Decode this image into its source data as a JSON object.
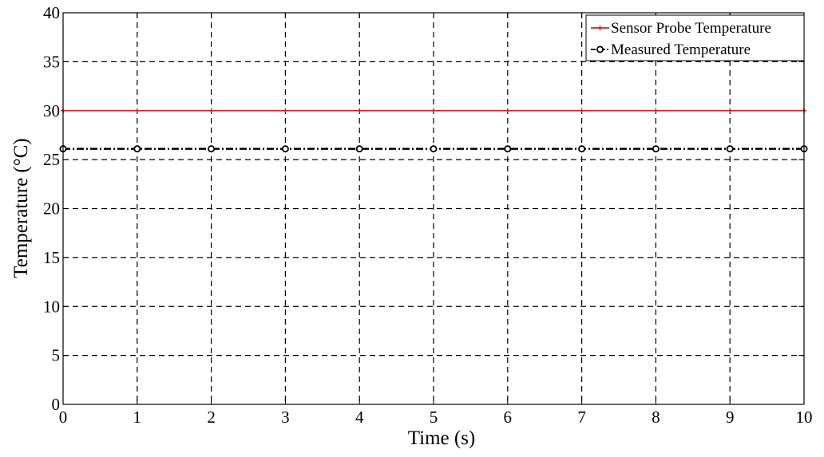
{
  "chart_data": {
    "type": "line",
    "title": "",
    "xlabel": "Time (s)",
    "ylabel": "Temperature (°C)",
    "xlim": [
      0,
      10
    ],
    "ylim": [
      0,
      40
    ],
    "xticks": [
      0,
      1,
      2,
      3,
      4,
      5,
      6,
      7,
      8,
      9,
      10
    ],
    "yticks": [
      0,
      5,
      10,
      15,
      20,
      25,
      30,
      35,
      40
    ],
    "grid": true,
    "legend_position": "top-right",
    "series": [
      {
        "name": "Sensor Probe Temperature",
        "color": "#e41a1c",
        "marker": "plus",
        "line_style": "solid",
        "x": [
          0,
          1,
          2,
          3,
          4,
          5,
          6,
          7,
          8,
          9,
          10
        ],
        "y": [
          30,
          30,
          30,
          30,
          30,
          30,
          30,
          30,
          30,
          30,
          30
        ]
      },
      {
        "name": "Measured Temperature",
        "color": "#000000",
        "marker": "circle",
        "line_style": "dash-dot",
        "x": [
          0,
          1,
          2,
          3,
          4,
          5,
          6,
          7,
          8,
          9,
          10
        ],
        "y": [
          26.1,
          26.1,
          26.1,
          26.1,
          26.1,
          26.1,
          26.1,
          26.1,
          26.1,
          26.1,
          26.1
        ]
      }
    ]
  }
}
